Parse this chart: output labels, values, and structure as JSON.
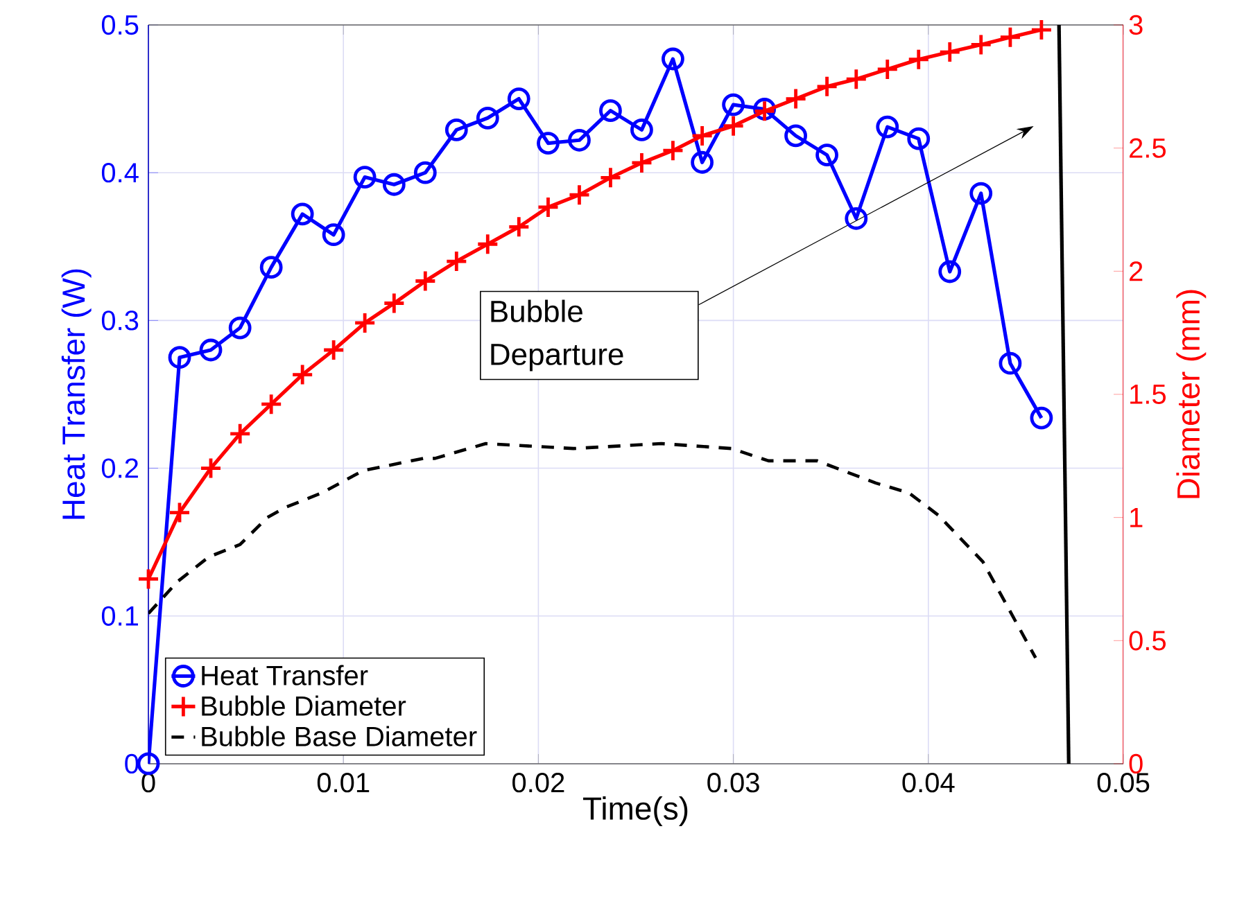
{
  "chart_data": {
    "type": "line",
    "xlabel": "Time(s)",
    "ylabel": "Heat Transfer (W)",
    "y2label": "Diameter (mm)",
    "xlim": [
      0,
      0.05
    ],
    "xticks": [
      0,
      0.01,
      0.02,
      0.03,
      0.04,
      0.05
    ],
    "ylim": [
      0,
      0.5
    ],
    "yticks": [
      0,
      0.1,
      0.2,
      0.3,
      0.4,
      0.5
    ],
    "y2lim": [
      0,
      3
    ],
    "y2ticks": [
      0,
      0.5,
      1,
      1.5,
      2,
      2.5,
      3
    ],
    "grid": true,
    "legend": "bottom left",
    "annotations": [
      "Bubble Departure"
    ],
    "x": [
      0,
      0.0016,
      0.0032,
      0.0047,
      0.0063,
      0.0079,
      0.0095,
      0.0111,
      0.0126,
      0.0142,
      0.0158,
      0.0174,
      0.019,
      0.0205,
      0.0221,
      0.0237,
      0.0253,
      0.0269,
      0.0284,
      0.03,
      0.0316,
      0.0332,
      0.0348,
      0.0363,
      0.0379,
      0.0395,
      0.0411,
      0.0427,
      0.0442,
      0.0458
    ],
    "series": [
      {
        "name": "Heat Transfer",
        "color": "#0000ff",
        "marker": "circle",
        "line_style": "solid",
        "values": [
          0,
          0.275,
          0.28,
          0.295,
          0.336,
          0.372,
          0.358,
          0.397,
          0.392,
          0.4,
          0.429,
          0.437,
          0.45,
          0.42,
          0.422,
          0.442,
          0.429,
          0.477,
          0.407,
          0.446,
          0.443,
          0.425,
          0.412,
          0.369,
          0.431,
          0.423,
          0.333,
          0.386,
          0.271,
          0.234
        ]
      },
      {
        "name": "Bubble Diameter",
        "color": "#ff0000",
        "marker": "cross",
        "line_style": "solid",
        "axis": "y2",
        "values": [
          0.75,
          1.02,
          1.2,
          1.34,
          1.46,
          1.58,
          1.68,
          1.79,
          1.87,
          1.96,
          2.04,
          2.11,
          2.18,
          2.26,
          2.31,
          2.38,
          2.44,
          2.49,
          2.55,
          2.59,
          2.65,
          2.7,
          2.75,
          2.78,
          2.82,
          2.86,
          2.89,
          2.92,
          2.95,
          2.98
        ]
      },
      {
        "name": "Bubble Base Diameter",
        "color": "#000000",
        "marker": "none",
        "line_style": "dashed",
        "axis": "y2",
        "x": [
          0,
          0.0015,
          0.0031,
          0.0047,
          0.0061,
          0.007,
          0.0089,
          0.011,
          0.0141,
          0.0147,
          0.0173,
          0.0218,
          0.0263,
          0.0299,
          0.0318,
          0.0343,
          0.0373,
          0.039,
          0.0405,
          0.0428,
          0.0455
        ],
        "values": [
          0.61,
          0.74,
          0.84,
          0.89,
          1.0,
          1.04,
          1.1,
          1.19,
          1.24,
          1.24,
          1.3,
          1.28,
          1.3,
          1.28,
          1.23,
          1.23,
          1.14,
          1.1,
          1.01,
          0.82,
          0.43
        ]
      },
      {
        "color": "#000000",
        "marker": "none",
        "line_style": "solid",
        "axis": "y2",
        "x": [
          0.0467,
          0.0472
        ],
        "values": [
          3,
          0
        ]
      }
    ]
  }
}
